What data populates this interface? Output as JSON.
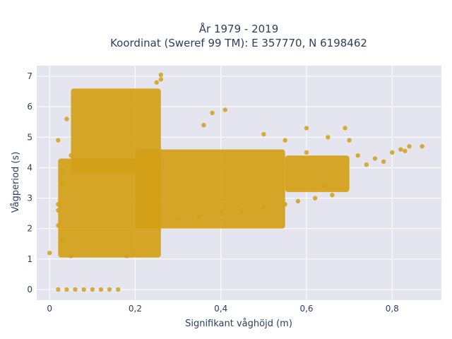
{
  "chart_data": {
    "type": "scatter",
    "title_line1": "År 1979 - 2019",
    "title_line2": "Koordinat (Sweref 99 TM): E 357770, N 6198462",
    "xlabel": "Signifikant våghöjd (m)",
    "ylabel": "Vågperiod (s)",
    "xlim": [
      -0.03,
      0.915
    ],
    "ylim": [
      -0.35,
      7.35
    ],
    "x_ticks": [
      0,
      0.2,
      0.4,
      0.6,
      0.8
    ],
    "x_tick_labels": [
      "0",
      "0,2",
      "0,4",
      "0,6",
      "0,8"
    ],
    "y_ticks": [
      0,
      1,
      2,
      3,
      4,
      5,
      6,
      7
    ],
    "y_tick_labels": [
      "0",
      "1",
      "2",
      "3",
      "4",
      "5",
      "6",
      "7"
    ],
    "grid": true,
    "marker_color": "#D4A017",
    "background_color": "#E5E5EF",
    "gridline_color": "#FFFFFF",
    "dense_regions": [
      {
        "x_range": [
          0.02,
          0.26
        ],
        "y_range": [
          1.05,
          4.3
        ]
      },
      {
        "x_range": [
          0.05,
          0.26
        ],
        "y_range": [
          3.8,
          6.6
        ]
      },
      {
        "x_range": [
          0.2,
          0.55
        ],
        "y_range": [
          2.0,
          4.6
        ]
      },
      {
        "x_range": [
          0.55,
          0.7
        ],
        "y_range": [
          3.2,
          4.4
        ]
      }
    ],
    "points": [
      {
        "x": 0.26,
        "y": 7.05
      },
      {
        "x": 0.26,
        "y": 6.9
      },
      {
        "x": 0.25,
        "y": 6.8
      },
      {
        "x": 0.0,
        "y": 1.2
      },
      {
        "x": 0.02,
        "y": 2.6
      },
      {
        "x": 0.03,
        "y": 3.5
      },
      {
        "x": 0.02,
        "y": 0.0
      },
      {
        "x": 0.04,
        "y": 0.0
      },
      {
        "x": 0.06,
        "y": 0.0
      },
      {
        "x": 0.08,
        "y": 0.0
      },
      {
        "x": 0.1,
        "y": 0.0
      },
      {
        "x": 0.12,
        "y": 0.0
      },
      {
        "x": 0.14,
        "y": 0.0
      },
      {
        "x": 0.16,
        "y": 0.0
      },
      {
        "x": 0.04,
        "y": 5.6
      },
      {
        "x": 0.02,
        "y": 4.9
      },
      {
        "x": 0.38,
        "y": 5.8
      },
      {
        "x": 0.41,
        "y": 5.9
      },
      {
        "x": 0.36,
        "y": 5.4
      },
      {
        "x": 0.5,
        "y": 5.1
      },
      {
        "x": 0.55,
        "y": 4.9
      },
      {
        "x": 0.6,
        "y": 4.5
      },
      {
        "x": 0.6,
        "y": 5.3
      },
      {
        "x": 0.65,
        "y": 5.0
      },
      {
        "x": 0.69,
        "y": 5.3
      },
      {
        "x": 0.7,
        "y": 4.9
      },
      {
        "x": 0.72,
        "y": 4.4
      },
      {
        "x": 0.74,
        "y": 4.1
      },
      {
        "x": 0.76,
        "y": 4.3
      },
      {
        "x": 0.78,
        "y": 4.2
      },
      {
        "x": 0.8,
        "y": 4.5
      },
      {
        "x": 0.82,
        "y": 4.6
      },
      {
        "x": 0.83,
        "y": 4.55
      },
      {
        "x": 0.84,
        "y": 4.7
      },
      {
        "x": 0.87,
        "y": 4.7
      },
      {
        "x": 0.64,
        "y": 3.4
      },
      {
        "x": 0.62,
        "y": 3.0
      },
      {
        "x": 0.66,
        "y": 3.1
      },
      {
        "x": 0.58,
        "y": 2.9
      },
      {
        "x": 0.55,
        "y": 2.8
      },
      {
        "x": 0.5,
        "y": 2.7
      },
      {
        "x": 0.45,
        "y": 2.6
      },
      {
        "x": 0.4,
        "y": 2.5
      },
      {
        "x": 0.35,
        "y": 2.4
      },
      {
        "x": 0.3,
        "y": 2.3
      },
      {
        "x": 0.25,
        "y": 2.2
      },
      {
        "x": 0.2,
        "y": 1.2
      },
      {
        "x": 0.18,
        "y": 1.1
      },
      {
        "x": 0.05,
        "y": 1.1
      },
      {
        "x": 0.03,
        "y": 1.6
      },
      {
        "x": 0.02,
        "y": 2.1
      },
      {
        "x": 0.02,
        "y": 2.8
      },
      {
        "x": 0.03,
        "y": 3.9
      },
      {
        "x": 0.05,
        "y": 4.4
      }
    ]
  }
}
